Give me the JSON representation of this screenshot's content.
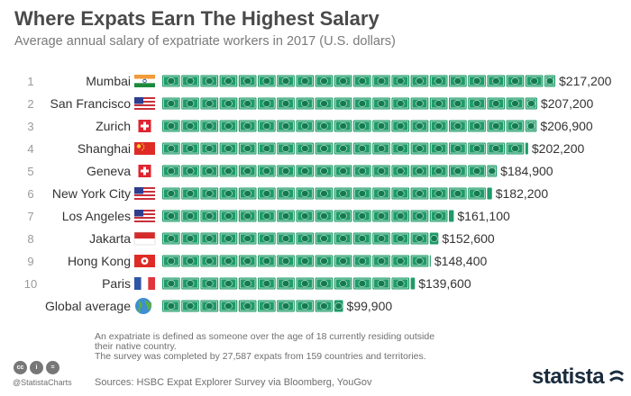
{
  "title": "Where Expats Earn The Highest Salary",
  "subtitle": "Average annual salary of expatriate workers in 2017 (U.S. dollars)",
  "footnote": [
    "An expatriate is defined as someone over the age of 18 currently residing outside their native country.",
    "The survey was completed by 27,587 expats from 159 countries and territories."
  ],
  "source": "Sources: HSBC Expat Explorer Survey via Bloomberg, YouGov",
  "credit": "@StatistaCharts",
  "brand": "statista",
  "colors": {
    "bill": "#1e9b68",
    "bill_dark": "#157a50",
    "rank": "#9a9a9a",
    "text": "#333333"
  },
  "chart_data": {
    "type": "bar",
    "orientation": "horizontal",
    "unit": "U.S. dollars",
    "categories": [
      "Mumbai",
      "San Francisco",
      "Zurich",
      "Shanghai",
      "Geneva",
      "New York City",
      "Los Angeles",
      "Jakarta",
      "Hong Kong",
      "Paris",
      "Global average"
    ],
    "ranks": [
      "1",
      "2",
      "3",
      "4",
      "5",
      "6",
      "7",
      "8",
      "9",
      "10",
      ""
    ],
    "flags": [
      "india",
      "usa",
      "switzerland",
      "china",
      "switzerland",
      "usa",
      "usa",
      "indonesia",
      "hong-kong",
      "france",
      "globe"
    ],
    "values": [
      217200,
      207200,
      206900,
      202200,
      184900,
      182200,
      161100,
      152600,
      148400,
      139600,
      99900
    ],
    "labels": [
      "$217,200",
      "$207,200",
      "$206,900",
      "$202,200",
      "$184,900",
      "$182,200",
      "$161,100",
      "$152,600",
      "$148,400",
      "$139,600",
      "$99,900"
    ],
    "xlim": [
      0,
      217200
    ]
  }
}
